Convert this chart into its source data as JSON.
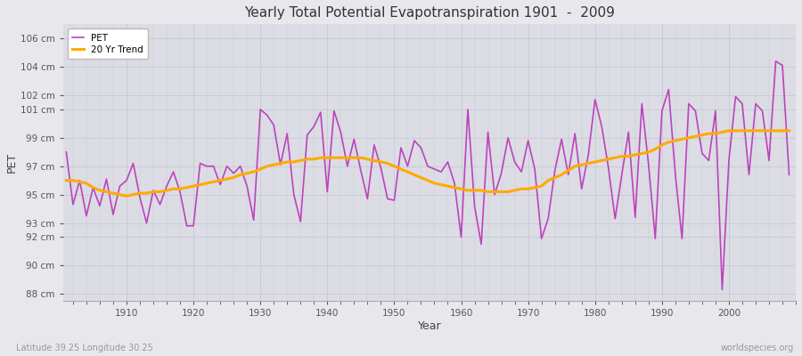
{
  "title": "Yearly Total Potential Evapotranspiration 1901  -  2009",
  "xlabel": "Year",
  "ylabel": "PET",
  "subtitle_left": "Latitude 39.25 Longitude 30.25",
  "subtitle_right": "worldspecies.org",
  "ylim": [
    87.5,
    107.0
  ],
  "yticks": [
    88,
    90,
    92,
    93,
    95,
    97,
    99,
    101,
    102,
    104,
    106
  ],
  "ytick_labels": [
    "88 cm",
    "90 cm",
    "92 cm",
    "93 cm",
    "95 cm",
    "97 cm",
    "99 cm",
    "101 cm",
    "102 cm",
    "104 cm",
    "106 cm"
  ],
  "xlim": [
    1900.5,
    2010
  ],
  "xticks": [
    1910,
    1920,
    1930,
    1940,
    1950,
    1960,
    1970,
    1980,
    1990,
    2000
  ],
  "pet_color": "#bb44bb",
  "trend_color": "#ffaa00",
  "bg_color": "#e8e8ec",
  "plot_bg_color": "#dcdce4",
  "grid_color": "#c8c8d4",
  "pet_linewidth": 1.2,
  "trend_linewidth": 2.2,
  "years": [
    1901,
    1902,
    1903,
    1904,
    1905,
    1906,
    1907,
    1908,
    1909,
    1910,
    1911,
    1912,
    1913,
    1914,
    1915,
    1916,
    1917,
    1918,
    1919,
    1920,
    1921,
    1922,
    1923,
    1924,
    1925,
    1926,
    1927,
    1928,
    1929,
    1930,
    1931,
    1932,
    1933,
    1934,
    1935,
    1936,
    1937,
    1938,
    1939,
    1940,
    1941,
    1942,
    1943,
    1944,
    1945,
    1946,
    1947,
    1948,
    1949,
    1950,
    1951,
    1952,
    1953,
    1954,
    1955,
    1956,
    1957,
    1958,
    1959,
    1960,
    1961,
    1962,
    1963,
    1964,
    1965,
    1966,
    1967,
    1968,
    1969,
    1970,
    1971,
    1972,
    1973,
    1974,
    1975,
    1976,
    1977,
    1978,
    1979,
    1980,
    1981,
    1982,
    1983,
    1984,
    1985,
    1986,
    1987,
    1988,
    1989,
    1990,
    1991,
    1992,
    1993,
    1994,
    1995,
    1996,
    1997,
    1998,
    1999,
    2000,
    2001,
    2002,
    2003,
    2004,
    2005,
    2006,
    2007,
    2008,
    2009
  ],
  "pet_values": [
    98.0,
    94.3,
    96.0,
    93.5,
    95.5,
    94.2,
    96.1,
    93.6,
    95.6,
    96.0,
    97.2,
    94.8,
    93.0,
    95.3,
    94.3,
    95.6,
    96.6,
    95.2,
    92.8,
    92.8,
    97.2,
    97.0,
    97.0,
    95.7,
    97.0,
    96.5,
    97.0,
    95.6,
    93.2,
    101.0,
    100.6,
    99.9,
    97.1,
    99.3,
    95.0,
    93.1,
    99.2,
    99.8,
    100.8,
    95.2,
    100.9,
    99.4,
    97.0,
    98.9,
    96.7,
    94.7,
    98.5,
    96.9,
    94.7,
    94.6,
    98.3,
    97.0,
    98.8,
    98.3,
    97.0,
    96.8,
    96.6,
    97.3,
    95.8,
    92.0,
    101.0,
    94.2,
    91.5,
    99.4,
    95.0,
    96.5,
    99.0,
    97.3,
    96.6,
    98.8,
    96.8,
    91.9,
    93.3,
    96.7,
    98.9,
    96.4,
    99.3,
    95.4,
    97.8,
    101.7,
    99.8,
    96.9,
    93.3,
    96.4,
    99.4,
    93.4,
    101.4,
    97.1,
    91.9,
    100.9,
    102.4,
    96.4,
    91.9,
    101.4,
    100.9,
    97.9,
    97.4,
    100.9,
    88.3,
    97.4,
    101.9,
    101.4,
    96.4,
    101.4,
    100.9,
    97.4,
    104.4,
    104.1,
    96.4
  ],
  "trend_years": [
    1901,
    1902,
    1903,
    1904,
    1905,
    1906,
    1907,
    1908,
    1909,
    1910,
    1911,
    1912,
    1913,
    1914,
    1915,
    1916,
    1917,
    1918,
    1919,
    1920,
    1921,
    1922,
    1923,
    1924,
    1925,
    1926,
    1927,
    1928,
    1929,
    1930,
    1931,
    1932,
    1933,
    1934,
    1935,
    1936,
    1937,
    1938,
    1939,
    1940,
    1941,
    1942,
    1943,
    1944,
    1945,
    1946,
    1947,
    1948,
    1949,
    1950,
    1951,
    1952,
    1953,
    1954,
    1955,
    1956,
    1957,
    1958,
    1959,
    1960,
    1961,
    1962,
    1963,
    1964,
    1965,
    1966,
    1967,
    1968,
    1969,
    1970,
    1971,
    1972,
    1973,
    1974,
    1975,
    1976,
    1977,
    1978,
    1979,
    1980,
    1981,
    1982,
    1983,
    1984,
    1985,
    1986,
    1987,
    1988,
    1989,
    1990,
    1991,
    1992,
    1993,
    1994,
    1995,
    1996,
    1997,
    1998,
    1999,
    2000,
    2001,
    2002,
    2003,
    2004,
    2005,
    2006,
    2007,
    2008,
    2009
  ],
  "trend_values": [
    96.0,
    96.0,
    95.9,
    95.8,
    95.5,
    95.3,
    95.2,
    95.1,
    95.0,
    94.9,
    95.0,
    95.1,
    95.1,
    95.2,
    95.2,
    95.3,
    95.4,
    95.4,
    95.5,
    95.6,
    95.7,
    95.8,
    95.9,
    96.0,
    96.1,
    96.2,
    96.4,
    96.5,
    96.6,
    96.8,
    97.0,
    97.1,
    97.2,
    97.3,
    97.3,
    97.4,
    97.5,
    97.5,
    97.6,
    97.6,
    97.6,
    97.6,
    97.6,
    97.6,
    97.6,
    97.5,
    97.4,
    97.3,
    97.2,
    97.0,
    96.8,
    96.6,
    96.4,
    96.2,
    96.0,
    95.8,
    95.7,
    95.6,
    95.5,
    95.4,
    95.3,
    95.3,
    95.3,
    95.2,
    95.2,
    95.2,
    95.2,
    95.3,
    95.4,
    95.4,
    95.5,
    95.6,
    96.0,
    96.2,
    96.4,
    96.7,
    97.0,
    97.1,
    97.2,
    97.3,
    97.4,
    97.5,
    97.6,
    97.7,
    97.7,
    97.8,
    97.9,
    98.0,
    98.2,
    98.5,
    98.7,
    98.8,
    98.9,
    99.0,
    99.1,
    99.2,
    99.3,
    99.3,
    99.4,
    99.5,
    99.5,
    99.5,
    99.5,
    99.5,
    99.5,
    99.5,
    99.5,
    99.5,
    99.5
  ]
}
